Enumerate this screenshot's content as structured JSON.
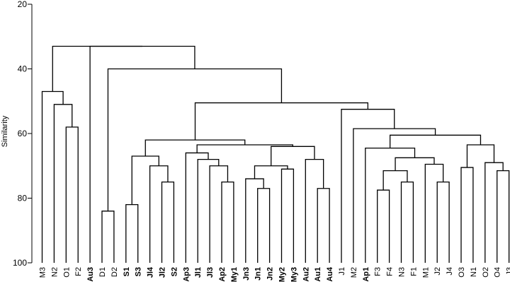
{
  "chart_data": {
    "type": "dendrogram",
    "title": "",
    "ylabel": "Similarity",
    "ylim": [
      100,
      20
    ],
    "yticks": [
      20,
      40,
      60,
      80,
      100
    ],
    "leaves": [
      {
        "label": "M3",
        "bold": false
      },
      {
        "label": "N2",
        "bold": false
      },
      {
        "label": "O1",
        "bold": false
      },
      {
        "label": "F2",
        "bold": false
      },
      {
        "label": "Au3",
        "bold": true
      },
      {
        "label": "D1",
        "bold": false
      },
      {
        "label": "D2",
        "bold": false
      },
      {
        "label": "S1",
        "bold": true
      },
      {
        "label": "S3",
        "bold": true
      },
      {
        "label": "Jl4",
        "bold": true
      },
      {
        "label": "Jl2",
        "bold": true
      },
      {
        "label": "S2",
        "bold": true
      },
      {
        "label": "Ap3",
        "bold": true
      },
      {
        "label": "Jl1",
        "bold": true
      },
      {
        "label": "Jl3",
        "bold": true
      },
      {
        "label": "Ap2",
        "bold": true
      },
      {
        "label": "My1",
        "bold": true
      },
      {
        "label": "Jn3",
        "bold": true
      },
      {
        "label": "Jn1",
        "bold": true
      },
      {
        "label": "Jn2",
        "bold": true
      },
      {
        "label": "My2",
        "bold": true
      },
      {
        "label": "My3",
        "bold": true
      },
      {
        "label": "Au2",
        "bold": true
      },
      {
        "label": "Au1",
        "bold": true
      },
      {
        "label": "Au4",
        "bold": true
      },
      {
        "label": "J1",
        "bold": false
      },
      {
        "label": "M2",
        "bold": false
      },
      {
        "label": "Ap1",
        "bold": true
      },
      {
        "label": "F3",
        "bold": false
      },
      {
        "label": "F4",
        "bold": false
      },
      {
        "label": "N3",
        "bold": false
      },
      {
        "label": "F1",
        "bold": false
      },
      {
        "label": "M1",
        "bold": false
      },
      {
        "label": "J2",
        "bold": false
      },
      {
        "label": "J4",
        "bold": false
      },
      {
        "label": "O3",
        "bold": false
      },
      {
        "label": "N1",
        "bold": false
      },
      {
        "label": "O2",
        "bold": false
      },
      {
        "label": "O4",
        "bold": false
      },
      {
        "label": "J3",
        "bold": false
      }
    ],
    "merges": [
      {
        "a": 2,
        "b": 3,
        "h": 58
      },
      {
        "a": 1,
        "b": "m0",
        "h": 51
      },
      {
        "a": 0,
        "b": "m1",
        "h": 47
      },
      {
        "a": 5,
        "b": 6,
        "h": 84
      },
      {
        "a": 7,
        "b": 8,
        "h": 82
      },
      {
        "a": 10,
        "b": 11,
        "h": 75
      },
      {
        "a": 9,
        "b": "m5",
        "h": 70
      },
      {
        "a": "m4",
        "b": "m6",
        "h": 67
      },
      {
        "a": 15,
        "b": 16,
        "h": 75
      },
      {
        "a": 14,
        "b": "m8",
        "h": 70
      },
      {
        "a": 13,
        "b": "m9",
        "h": 68
      },
      {
        "a": 12,
        "b": "m10",
        "h": 66
      },
      {
        "a": 18,
        "b": 19,
        "h": 77
      },
      {
        "a": 17,
        "b": "m12",
        "h": 74
      },
      {
        "a": 20,
        "b": 21,
        "h": 71
      },
      {
        "a": "m13",
        "b": "m14",
        "h": 70
      },
      {
        "a": 23,
        "b": 24,
        "h": 77
      },
      {
        "a": 22,
        "b": "m16",
        "h": 68
      },
      {
        "a": "m15",
        "b": "m17",
        "h": 64
      },
      {
        "a": "m11",
        "b": "m18",
        "h": 63.5
      },
      {
        "a": "m7",
        "b": "m19",
        "h": 62
      },
      {
        "a": 28,
        "b": 29,
        "h": 77.5
      },
      {
        "a": 30,
        "b": 31,
        "h": 75
      },
      {
        "a": "m21",
        "b": "m22",
        "h": 71.5
      },
      {
        "a": 33,
        "b": 34,
        "h": 75
      },
      {
        "a": 32,
        "b": "m24",
        "h": 69.5
      },
      {
        "a": "m23",
        "b": "m25",
        "h": 67.5
      },
      {
        "a": 27,
        "b": "m26",
        "h": 64.5
      },
      {
        "a": 35,
        "b": 36,
        "h": 70.5
      },
      {
        "a": 38,
        "b": 39,
        "h": 71.5
      },
      {
        "a": 37,
        "b": "m29",
        "h": 69
      },
      {
        "a": "m28",
        "b": "m30",
        "h": 63.5
      },
      {
        "a": "m27",
        "b": "m31",
        "h": 60.5
      },
      {
        "a": 26,
        "b": "m32",
        "h": 58.5
      },
      {
        "a": 25,
        "b": "m33",
        "h": 52.5
      },
      {
        "a": "m20",
        "b": "m34",
        "h": 50.5
      },
      {
        "a": "m3",
        "b": "m35",
        "h": 40
      },
      {
        "a": 4,
        "b": "m36",
        "h": 33
      },
      {
        "a": "m2",
        "b": "m37",
        "h": 33
      }
    ]
  }
}
